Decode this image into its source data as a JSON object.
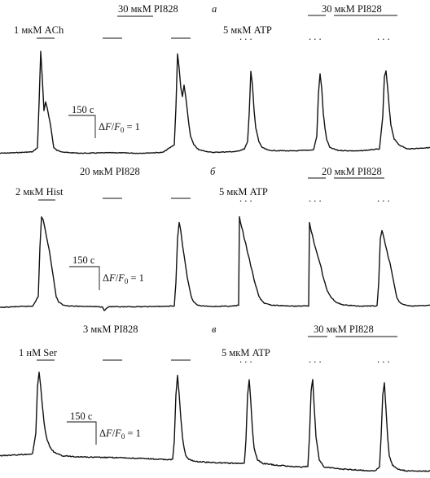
{
  "chart_data": [
    {
      "type": "line",
      "panel_letter": "а",
      "agonist": "1 мкМ ACh",
      "inhibitor": "30 мкМ PI828",
      "atp": "5 мкМ ATP",
      "inhibitor_right": "30 мкМ PI828",
      "dots": ". . .",
      "scale_time": "150 с",
      "scale_amp_pre": "Δ",
      "scale_amp_f": "F",
      "scale_amp_slash": "/",
      "scale_amp_f0": "F",
      "scale_amp_sub": "0",
      "scale_amp_post": " = 1",
      "series": [
        {
          "x": [
            0,
            20,
            40,
            46,
            48,
            50,
            52,
            54,
            56,
            58,
            60,
            62,
            64,
            66,
            70,
            80,
            100,
            140,
            170,
            200,
            214,
            216,
            218,
            220,
            222,
            224,
            226,
            228,
            230,
            232,
            234,
            238,
            244,
            260,
            290,
            300,
            304,
            306,
            308,
            310,
            312,
            314,
            318,
            322,
            330,
            360,
            385,
            389,
            391,
            393,
            395,
            397,
            399,
            401,
            405,
            415,
            440,
            466,
            470,
            472,
            474,
            476,
            478,
            480,
            484,
            490,
            500,
            528
          ],
          "y": [
            0.0,
            0.02,
            0.05,
            0.2,
            1.8,
            3.6,
            2.6,
            1.5,
            1.8,
            1.6,
            1.3,
            1.0,
            0.6,
            0.2,
            0.1,
            0.03,
            0.0,
            0.02,
            0.0,
            0.03,
            0.3,
            1.6,
            3.5,
            3.0,
            2.3,
            2.0,
            2.4,
            2.0,
            1.5,
            1.0,
            0.6,
            0.3,
            0.12,
            0.03,
            0.06,
            0.15,
            0.4,
            1.4,
            2.9,
            2.4,
            1.5,
            0.9,
            0.4,
            0.2,
            0.1,
            0.08,
            0.12,
            0.6,
            2.1,
            2.8,
            2.3,
            1.4,
            0.9,
            0.5,
            0.2,
            0.1,
            0.08,
            0.15,
            1.3,
            2.7,
            2.9,
            2.3,
            1.6,
            1.0,
            0.5,
            0.3,
            0.15,
            0.2
          ]
        }
      ],
      "ylim": [
        -0.1,
        3.8
      ],
      "xlim": [
        0,
        528
      ]
    },
    {
      "type": "line",
      "panel_letter": "б",
      "agonist": "2 мкМ Hist",
      "inhibitor": "20 мкМ PI828",
      "atp": "5 мкМ ATP",
      "inhibitor_right": "20 мкМ PI828",
      "dots": ". . .",
      "scale_time": "150 с",
      "scale_amp_pre": "Δ",
      "scale_amp_f": "F",
      "scale_amp_slash": "/",
      "scale_amp_f0": "F",
      "scale_amp_sub": "0",
      "scale_amp_post": " = 1",
      "series": [
        {
          "x": [
            0,
            20,
            40,
            47,
            49,
            51,
            53,
            55,
            57,
            59,
            61,
            63,
            65,
            67,
            69,
            72,
            78,
            90,
            110,
            126,
            128,
            130,
            132,
            134,
            150,
            200,
            214,
            216,
            218,
            220,
            222,
            224,
            226,
            228,
            230,
            232,
            234,
            236,
            238,
            242,
            248,
            260,
            285,
            293,
            294,
            296,
            298,
            300,
            302,
            304,
            306,
            308,
            310,
            312,
            314,
            316,
            318,
            320,
            325,
            335,
            360,
            379,
            380,
            382,
            384,
            386,
            388,
            390,
            392,
            394,
            396,
            398,
            400,
            402,
            406,
            412,
            420,
            440,
            463,
            465,
            467,
            469,
            471,
            473,
            475,
            477,
            479,
            481,
            483,
            485,
            487,
            490,
            496,
            505,
            528
          ],
          "y": [
            0.0,
            0.03,
            0.05,
            0.4,
            2.2,
            3.3,
            3.2,
            2.9,
            2.6,
            2.3,
            2.0,
            1.6,
            1.2,
            0.8,
            0.4,
            0.2,
            0.08,
            0.05,
            0.04,
            0.02,
            -0.1,
            -0.06,
            0.0,
            0.03,
            0.02,
            0.04,
            0.06,
            0.9,
            2.5,
            3.1,
            2.8,
            2.3,
            1.9,
            1.5,
            1.1,
            0.8,
            0.5,
            0.3,
            0.2,
            0.1,
            0.06,
            0.04,
            0.05,
            0.08,
            3.3,
            3.0,
            2.8,
            2.5,
            2.3,
            2.0,
            1.8,
            1.5,
            1.3,
            1.0,
            0.8,
            0.6,
            0.4,
            0.3,
            0.15,
            0.08,
            0.05,
            0.06,
            3.1,
            2.8,
            2.6,
            2.3,
            2.1,
            1.9,
            1.7,
            1.5,
            1.2,
            1.0,
            0.8,
            0.6,
            0.4,
            0.2,
            0.1,
            0.05,
            0.06,
            0.9,
            2.5,
            2.8,
            2.6,
            2.3,
            2.1,
            1.8,
            1.6,
            1.3,
            1.0,
            0.7,
            0.4,
            0.2,
            0.1,
            0.05,
            0.08
          ]
        }
      ],
      "ylim": [
        -0.2,
        3.8
      ],
      "xlim": [
        0,
        528
      ]
    },
    {
      "type": "line",
      "panel_letter": "в",
      "agonist": "1 нМ Ser",
      "inhibitor": "3 мкМ PI828",
      "atp": "5 мкМ ATP",
      "inhibitor_right": "30 мкМ PI828",
      "dots": ". . .",
      "scale_time": "150 с",
      "scale_amp_pre": "Δ",
      "scale_amp_f": "F",
      "scale_amp_slash": "/",
      "scale_amp_f0": "F",
      "scale_amp_sub": "0",
      "scale_amp_post": " = 1",
      "series": [
        {
          "x": [
            0,
            20,
            40,
            44,
            46,
            48,
            50,
            52,
            54,
            56,
            58,
            60,
            62,
            64,
            66,
            70,
            76,
            90,
            110,
            140,
            170,
            200,
            212,
            214,
            216,
            218,
            220,
            222,
            224,
            226,
            228,
            232,
            240,
            260,
            290,
            300,
            302,
            304,
            306,
            308,
            310,
            312,
            316,
            322,
            340,
            370,
            378,
            380,
            382,
            384,
            386,
            388,
            392,
            398,
            420,
            460,
            466,
            468,
            470,
            472,
            474,
            476,
            478,
            482,
            488,
            500,
            528
          ],
          "y": [
            0.4,
            0.42,
            0.45,
            1.0,
            2.2,
            2.6,
            2.2,
            1.7,
            1.3,
            1.0,
            0.8,
            0.7,
            0.6,
            0.55,
            0.5,
            0.45,
            0.4,
            0.38,
            0.36,
            0.35,
            0.33,
            0.3,
            0.3,
            0.8,
            2.0,
            2.5,
            2.0,
            1.4,
            0.9,
            0.6,
            0.4,
            0.3,
            0.25,
            0.22,
            0.2,
            0.2,
            0.8,
            2.0,
            2.4,
            1.8,
            1.1,
            0.6,
            0.3,
            0.2,
            0.15,
            0.1,
            0.12,
            0.9,
            2.1,
            2.4,
            1.6,
            0.9,
            0.3,
            0.1,
            0.05,
            0.0,
            0.1,
            0.9,
            2.0,
            2.3,
            1.6,
            0.9,
            0.4,
            0.15,
            0.05,
            0.0,
            0.0
          ]
        }
      ],
      "ylim": [
        -0.1,
        2.8
      ],
      "xlim": [
        0,
        528
      ]
    }
  ]
}
